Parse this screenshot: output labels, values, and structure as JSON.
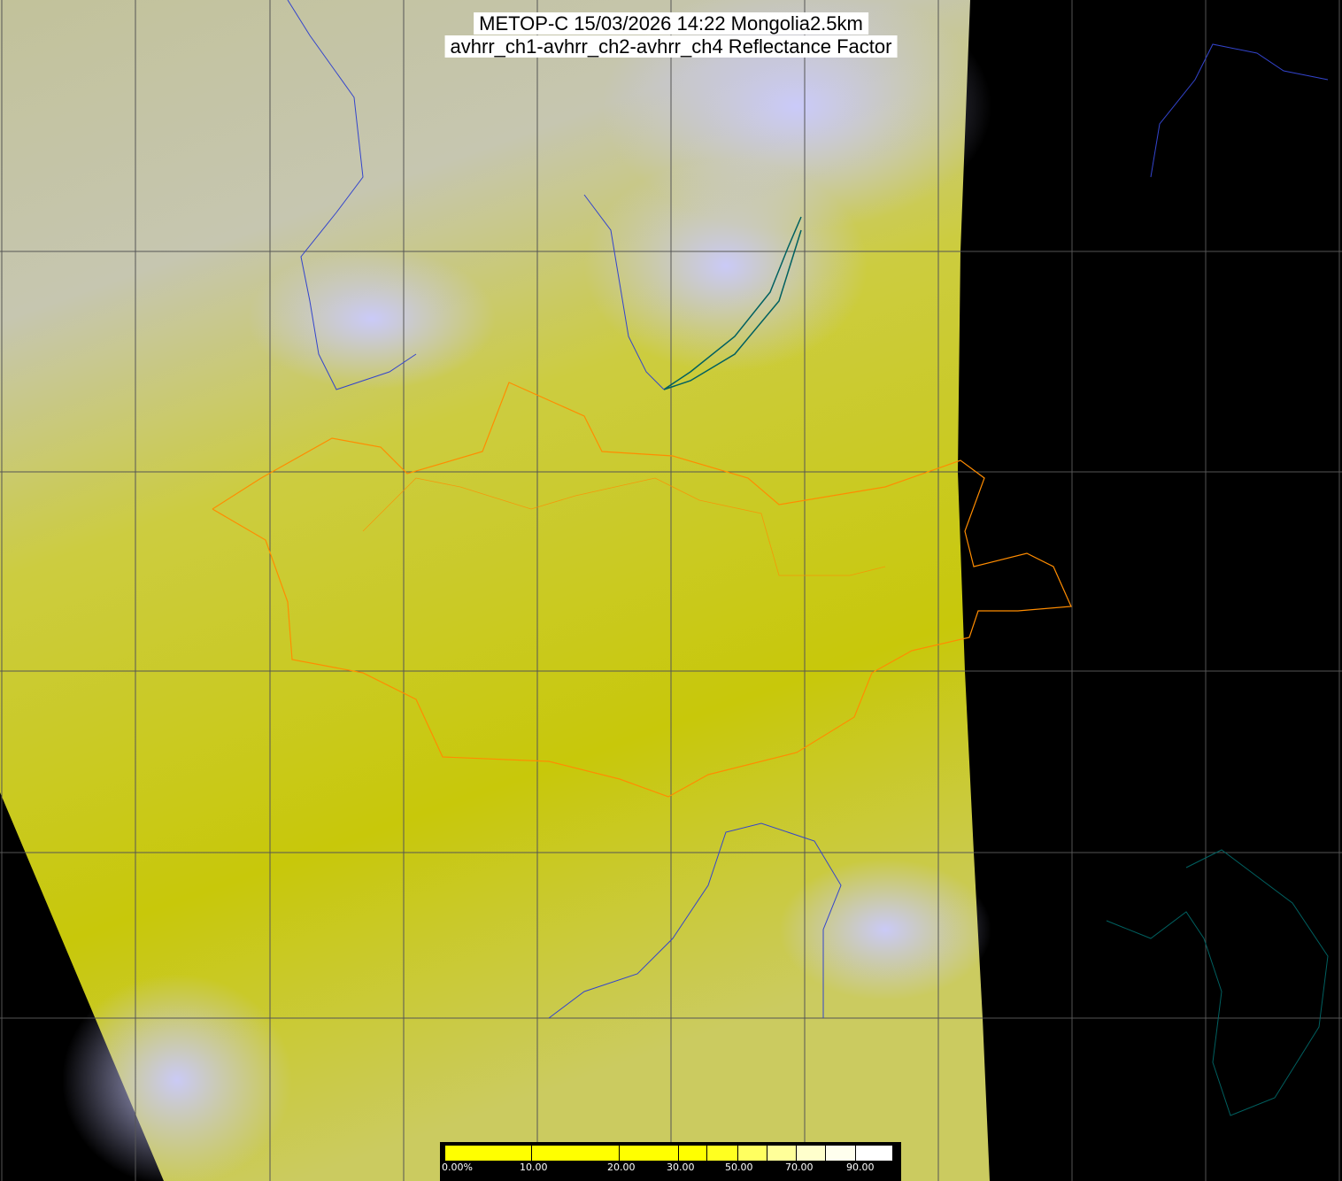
{
  "title": {
    "line1": "METOP-C 15/03/2026 14:22 Mongolia2.5km",
    "line2": "avhrr_ch1-avhrr_ch2-avhrr_ch4 Reflectance Factor"
  },
  "colors": {
    "background": "#000000",
    "low_reflectance": "#c8c800",
    "high_reflectance": "#c8c8ff",
    "grid": "#555555",
    "mongolia_border": "#ff8c00",
    "coast_river": "#3344cc",
    "lakes": "#006060"
  },
  "colorbar": {
    "labels": [
      "0.00%",
      "10.00",
      "20.00",
      "30.00",
      "50.00",
      "70.00",
      "90.00"
    ],
    "segments": [
      "#ffff00",
      "#ffff00",
      "#ffff00",
      "#ffff00",
      "#ffff20",
      "#ffff60",
      "#ffff99",
      "#ffffcc",
      "#ffffee",
      "#ffffff"
    ]
  }
}
